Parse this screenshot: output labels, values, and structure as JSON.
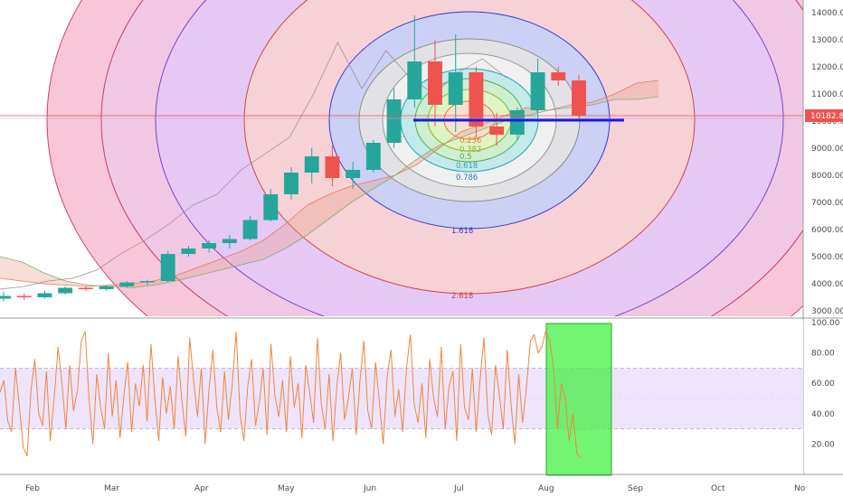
{
  "chart_data": [
    {
      "type": "candlestick",
      "x_axis_labels": [
        "Feb",
        "Mar",
        "Apr",
        "May",
        "Jun",
        "Jul",
        "Aug",
        "Sep",
        "Oct",
        "No"
      ],
      "y_ticks": [
        "14000.00",
        "13000.00",
        "12000.00",
        "11000.00",
        "10000.00",
        "9000.00",
        "8000.00",
        "7000.00",
        "6000.00",
        "5000.00",
        "4000.00",
        "3000.00"
      ],
      "ylim": [
        2800,
        14600
      ],
      "last_price": "10182.85",
      "support_level": 10000,
      "fib_circle_levels": [
        "0.236",
        "0.382",
        "0.5",
        "0.618",
        "0.786",
        "1.618",
        "2.618"
      ],
      "grid": false,
      "ohlc_weekly": [
        [
          3450,
          3700,
          3350,
          3550
        ],
        [
          3550,
          3650,
          3400,
          3500
        ],
        [
          3500,
          3750,
          3450,
          3650
        ],
        [
          3650,
          3900,
          3600,
          3850
        ],
        [
          3850,
          3900,
          3750,
          3800
        ],
        [
          3800,
          3950,
          3750,
          3900
        ],
        [
          3900,
          4100,
          3850,
          4050
        ],
        [
          4050,
          4150,
          3950,
          4100
        ],
        [
          4100,
          5200,
          4050,
          5100
        ],
        [
          5100,
          5400,
          5000,
          5300
        ],
        [
          5300,
          5600,
          5150,
          5500
        ],
        [
          5500,
          5800,
          5300,
          5650
        ],
        [
          5650,
          6500,
          5600,
          6350
        ],
        [
          6350,
          7500,
          6300,
          7300
        ],
        [
          7300,
          8300,
          7100,
          8100
        ],
        [
          8100,
          9000,
          7700,
          8700
        ],
        [
          8700,
          9100,
          7600,
          7900
        ],
        [
          7900,
          8500,
          7500,
          8200
        ],
        [
          8200,
          9300,
          8100,
          9200
        ],
        [
          9200,
          11200,
          9000,
          10800
        ],
        [
          10800,
          13900,
          10500,
          12200
        ],
        [
          12200,
          13000,
          9800,
          10600
        ],
        [
          10600,
          13200,
          9600,
          11800
        ],
        [
          11800,
          12000,
          9400,
          9800
        ],
        [
          9800,
          10300,
          9100,
          9500
        ],
        [
          9500,
          10500,
          9300,
          10400
        ],
        [
          10400,
          12300,
          10300,
          11800
        ],
        [
          11800,
          12000,
          11300,
          11500
        ],
        [
          11500,
          11700,
          10100,
          10200
        ]
      ],
      "cloud_span_a": [
        4200,
        4100,
        4000,
        3950,
        3900,
        3950,
        4000,
        4100,
        4300,
        4600,
        4900,
        5200,
        5600,
        6200,
        6900,
        7300,
        7600,
        7800,
        8000,
        8400,
        9000,
        9600,
        9900,
        10200,
        10500,
        10400,
        10600,
        10700,
        11000,
        11400,
        11500
      ],
      "cloud_span_b": [
        5000,
        4800,
        4400,
        4100,
        3950,
        3900,
        3850,
        3950,
        4100,
        4300,
        4500,
        4700,
        4900,
        5300,
        5800,
        6400,
        7000,
        7500,
        8000,
        8600,
        9100,
        9400,
        9700,
        10000,
        10200,
        10400,
        10500,
        10600,
        10800,
        10800,
        10900
      ],
      "lagging_span": [
        3800,
        3900,
        4100,
        4200,
        4500,
        5100,
        5600,
        6200,
        6900,
        7300,
        8200,
        8800,
        9400,
        11000,
        12900,
        11200,
        12600,
        11600,
        11000,
        11800,
        12300,
        11600
      ],
      "oscillator": {
        "ylim": [
          0,
          100
        ],
        "y_ticks": [
          "100.00",
          "80.00",
          "60.00",
          "40.00",
          "20.00"
        ],
        "band": [
          30,
          70
        ],
        "values": [
          54,
          62,
          35,
          28,
          70,
          45,
          18,
          12,
          55,
          76,
          40,
          32,
          68,
          22,
          50,
          84,
          60,
          30,
          72,
          42,
          55,
          88,
          94,
          50,
          20,
          66,
          44,
          30,
          80,
          38,
          62,
          24,
          52,
          74,
          28,
          60,
          45,
          72,
          35,
          86,
          50,
          22,
          64,
          40,
          58,
          30,
          78,
          48,
          25,
          90,
          62,
          38,
          70,
          20,
          56,
          82,
          44,
          28,
          68,
          36,
          60,
          94,
          40,
          22,
          58,
          76,
          32,
          48,
          70,
          26,
          86,
          52,
          38,
          62,
          28,
          78,
          44,
          60,
          24,
          72,
          54,
          34,
          90,
          46,
          30,
          66,
          22,
          58,
          80,
          36,
          50,
          70,
          26,
          62,
          88,
          42,
          30,
          74,
          48,
          20,
          64,
          82,
          38,
          56,
          28,
          70,
          92,
          46,
          34,
          60,
          24,
          76,
          50,
          38,
          84,
          30,
          58,
          68,
          22,
          86,
          44,
          36,
          70,
          28,
          62,
          90,
          40,
          26,
          72,
          52,
          30,
          82,
          46,
          20,
          66,
          34,
          58,
          88,
          92,
          80,
          84,
          95,
          88,
          70,
          30,
          60,
          50,
          22,
          40,
          14,
          11
        ]
      },
      "highlight_box": {
        "x_start": "Aug",
        "y_range": [
          0,
          100
        ],
        "color": "#3df03d"
      }
    }
  ],
  "colors": {
    "ring_pink": "#f7c6d9",
    "ring_purple": "#e1c8f5",
    "ring_blue": "#c8cff3",
    "ring_orange": "#f8d0c8",
    "bull": "#26a69a",
    "bear": "#ef5350",
    "support": "#1a1adf",
    "osc_line": "#f2863a",
    "badge": "#ef5350"
  }
}
